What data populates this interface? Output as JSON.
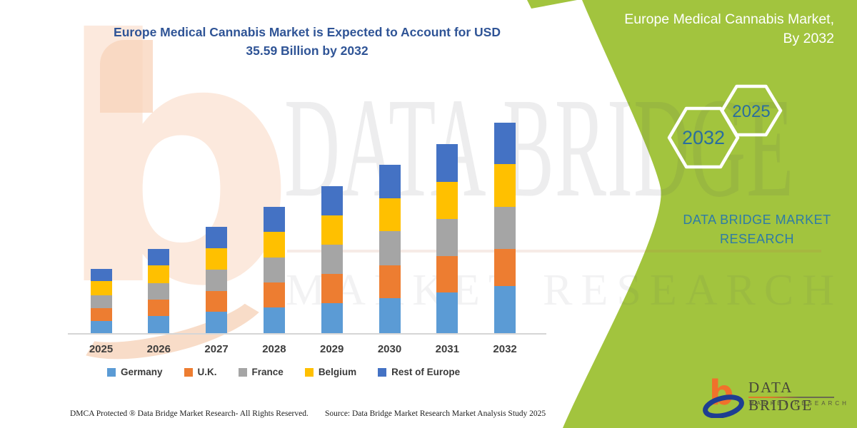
{
  "header": {
    "chart_title_line1": "Europe Medical Cannabis Market is Expected to Account for USD",
    "chart_title_line2": "35.59 Billion by 2032"
  },
  "side_panel": {
    "title_line1": "Europe Medical Cannabis Market,",
    "title_line2": "By 2032",
    "hexagons": [
      {
        "label": "2032"
      },
      {
        "label": "2025"
      }
    ],
    "brand_line1": "DATA BRIDGE MARKET",
    "brand_line2": "RESEARCH",
    "panel_color": "#a2c43e"
  },
  "watermark": {
    "line1": "DATA BRIDGE",
    "line2": "MARKET RESEARCH"
  },
  "chart_data": {
    "type": "bar",
    "stacked": true,
    "title": "Europe Medical Cannabis Market is Expected to Account for USD 35.59 Billion by 2032",
    "unit": "USD billion",
    "categories": [
      "2025",
      "2026",
      "2027",
      "2028",
      "2029",
      "2030",
      "2031",
      "2032"
    ],
    "series": [
      {
        "name": "Germany",
        "color": "#5b9bd5",
        "values": [
          2.0,
          2.9,
          3.6,
          4.3,
          5.1,
          5.9,
          6.9,
          7.9
        ]
      },
      {
        "name": "U.K.",
        "color": "#ed7d31",
        "values": [
          2.2,
          2.8,
          3.5,
          4.3,
          4.9,
          5.6,
          6.1,
          6.3
        ]
      },
      {
        "name": "France",
        "color": "#a5a5a5",
        "values": [
          2.2,
          2.8,
          3.6,
          4.2,
          5.0,
          5.7,
          6.3,
          7.1
        ]
      },
      {
        "name": "Belgium",
        "color": "#ffc000",
        "values": [
          2.4,
          2.9,
          3.6,
          4.3,
          4.9,
          5.6,
          6.3,
          7.2
        ]
      },
      {
        "name": "Rest of Europe",
        "color": "#4472c4",
        "values": [
          2.1,
          2.8,
          3.6,
          4.2,
          4.9,
          5.6,
          6.3,
          7.1
        ]
      }
    ],
    "totals": [
      10.9,
      14.2,
      17.9,
      21.3,
      24.8,
      28.4,
      31.9,
      35.59
    ],
    "highlight_value": "USD 35.59 Billion by 2032",
    "xlabel": "",
    "ylabel": "",
    "gridlines": false,
    "legend_position": "bottom"
  },
  "footer": {
    "left": "DMCA Protected ® Data Bridge Market Research- All Rights Reserved.",
    "source": "Source: Data Bridge Market Research Market Analysis Study 2025"
  },
  "logo": {
    "name": "DATA BRIDGE",
    "subtitle": "MARKET RESEARCH",
    "mark": "b-swoosh"
  }
}
